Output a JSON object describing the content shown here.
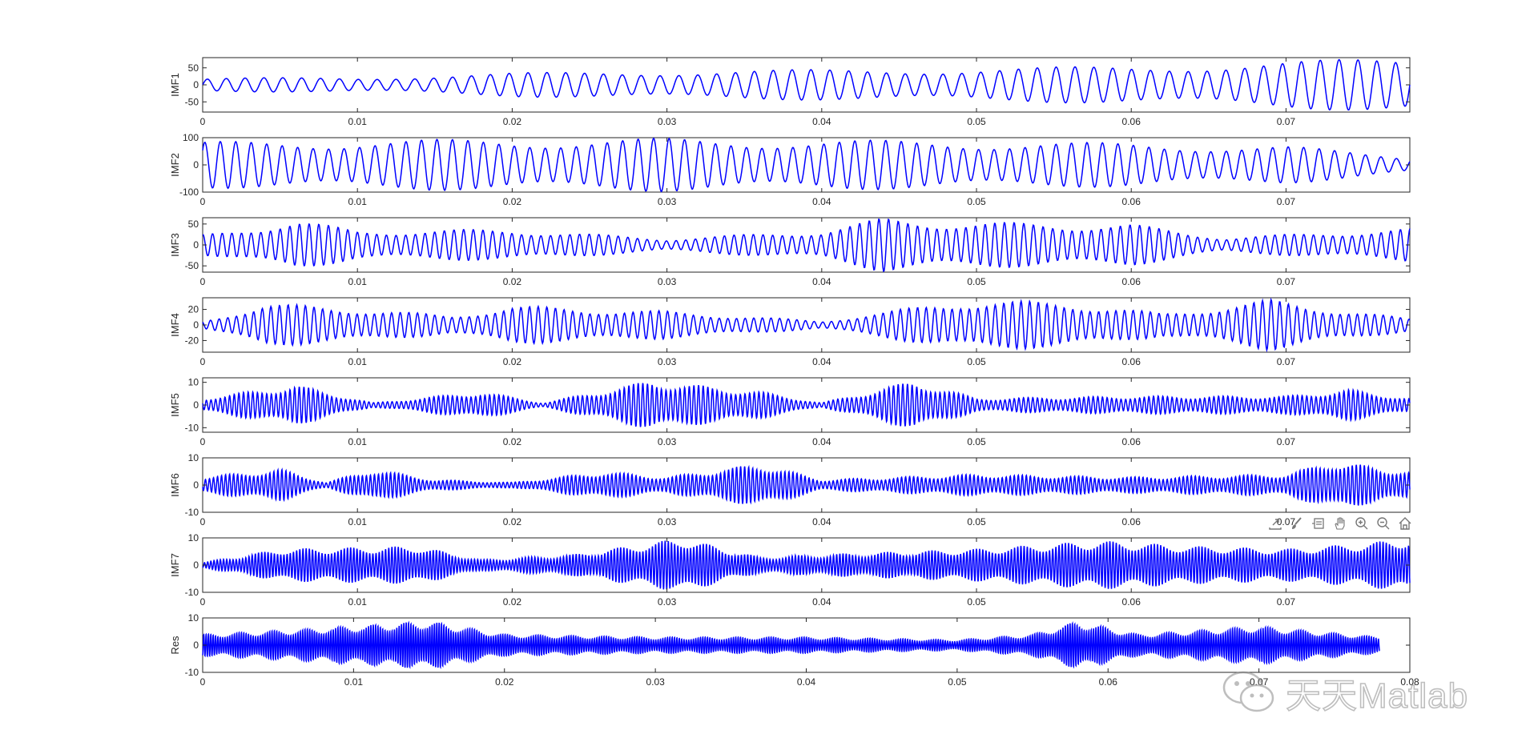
{
  "chart_data": [
    {
      "type": "line",
      "ylabel": "IMF1",
      "ylim": [
        -80,
        80
      ],
      "yticks": [
        -50,
        0,
        50
      ],
      "xlim": [
        0,
        0.078
      ],
      "x_tick_labels": [
        "0",
        "0.01",
        "0.02",
        "0.03",
        "0.04",
        "0.05",
        "0.06",
        "0.07"
      ],
      "series": [
        {
          "color": "#0000ff",
          "cycles": 64,
          "amp_envelope": [
            [
              0,
              20
            ],
            [
              0.01,
              22
            ],
            [
              0.02,
              35
            ],
            [
              0.03,
              42
            ],
            [
              0.04,
              45
            ],
            [
              0.05,
              50
            ],
            [
              0.06,
              55
            ],
            [
              0.07,
              70
            ],
            [
              0.078,
              80
            ]
          ]
        }
      ]
    },
    {
      "type": "line",
      "ylabel": "IMF2",
      "ylim": [
        -100,
        100
      ],
      "yticks": [
        -100,
        0,
        100
      ],
      "xlim": [
        0,
        0.078
      ],
      "x_tick_labels": [
        "0",
        "0.01",
        "0.02",
        "0.03",
        "0.04",
        "0.05",
        "0.06",
        "0.07"
      ],
      "series": [
        {
          "color": "#0000ff",
          "cycles": 78,
          "amp_envelope": [
            [
              0,
              85
            ],
            [
              0.01,
              92
            ],
            [
              0.02,
              95
            ],
            [
              0.03,
              98
            ],
            [
              0.04,
              92
            ],
            [
              0.05,
              88
            ],
            [
              0.06,
              80
            ],
            [
              0.07,
              70
            ],
            [
              0.078,
              30
            ]
          ]
        }
      ]
    },
    {
      "type": "line",
      "ylabel": "IMF3",
      "ylim": [
        -65,
        65
      ],
      "yticks": [
        -50,
        0,
        50
      ],
      "xlim": [
        0,
        0.078
      ],
      "x_tick_labels": [
        "0",
        "0.01",
        "0.02",
        "0.03",
        "0.04",
        "0.05",
        "0.06",
        "0.07"
      ],
      "series": [
        {
          "color": "#0000ff",
          "cycles": 125,
          "amp_envelope": [
            [
              0,
              25
            ],
            [
              0.006,
              60
            ],
            [
              0.01,
              35
            ],
            [
              0.02,
              38
            ],
            [
              0.03,
              15
            ],
            [
              0.04,
              35
            ],
            [
              0.044,
              65
            ],
            [
              0.05,
              55
            ],
            [
              0.06,
              50
            ],
            [
              0.066,
              18
            ],
            [
              0.078,
              40
            ]
          ]
        }
      ]
    },
    {
      "type": "line",
      "ylabel": "IMF4",
      "ylim": [
        -35,
        35
      ],
      "yticks": [
        -20,
        0,
        20
      ],
      "xlim": [
        0,
        0.078
      ],
      "x_tick_labels": [
        "0",
        "0.01",
        "0.02",
        "0.03",
        "0.04",
        "0.05",
        "0.06",
        "0.07"
      ],
      "series": [
        {
          "color": "#0000ff",
          "cycles": 140,
          "amp_envelope": [
            [
              0,
              5
            ],
            [
              0.004,
              28
            ],
            [
              0.01,
              22
            ],
            [
              0.016,
              12
            ],
            [
              0.02,
              25
            ],
            [
              0.03,
              18
            ],
            [
              0.04,
              5
            ],
            [
              0.049,
              32
            ],
            [
              0.056,
              30
            ],
            [
              0.062,
              15
            ],
            [
              0.069,
              33
            ],
            [
              0.078,
              8
            ]
          ]
        }
      ]
    },
    {
      "type": "line",
      "ylabel": "IMF5",
      "ylim": [
        -12,
        12
      ],
      "yticks": [
        -10,
        0,
        10
      ],
      "xlim": [
        0,
        0.078
      ],
      "x_tick_labels": [
        "0",
        "0.01",
        "0.02",
        "0.03",
        "0.04",
        "0.05",
        "0.06",
        "0.07"
      ],
      "series": [
        {
          "color": "#0000ff",
          "cycles": 260,
          "amp_envelope": [
            [
              0,
              3
            ],
            [
              0.006,
              9
            ],
            [
              0.011,
              1
            ],
            [
              0.018,
              6
            ],
            [
              0.022,
              1
            ],
            [
              0.029,
              11
            ],
            [
              0.036,
              6
            ],
            [
              0.04,
              1
            ],
            [
              0.046,
              11
            ],
            [
              0.05,
              3
            ],
            [
              0.06,
              4
            ],
            [
              0.07,
              4
            ],
            [
              0.074,
              7
            ],
            [
              0.078,
              3
            ]
          ]
        }
      ]
    },
    {
      "type": "line",
      "ylabel": "IMF6",
      "ylim": [
        -10,
        10
      ],
      "yticks": [
        -10,
        0,
        10
      ],
      "xlim": [
        0,
        0.078
      ],
      "x_tick_labels": [
        "0",
        "0.01",
        "0.02",
        "0.03",
        "0.04",
        "0.05",
        "0.06",
        "0.07"
      ],
      "series": [
        {
          "color": "#0000ff",
          "cycles": 300,
          "amp_envelope": [
            [
              0,
              3
            ],
            [
              0.005,
              6
            ],
            [
              0.008,
              1
            ],
            [
              0.011,
              6
            ],
            [
              0.015,
              2
            ],
            [
              0.02,
              1
            ],
            [
              0.026,
              5
            ],
            [
              0.03,
              3
            ],
            [
              0.036,
              8
            ],
            [
              0.04,
              2
            ],
            [
              0.05,
              4
            ],
            [
              0.06,
              3
            ],
            [
              0.07,
              4
            ],
            [
              0.073,
              9
            ],
            [
              0.078,
              5
            ]
          ]
        }
      ]
    },
    {
      "type": "line",
      "ylabel": "IMF7",
      "ylim": [
        -10,
        10
      ],
      "yticks": [
        -10,
        0,
        10
      ],
      "xlim": [
        0,
        0.078
      ],
      "x_tick_labels": [
        "0",
        "0.01",
        "0.02",
        "0.03",
        "0.04",
        "0.05",
        "0.06",
        "0.07"
      ],
      "series": [
        {
          "color": "#0000ff",
          "cycles": 380,
          "amp_envelope": [
            [
              0,
              1
            ],
            [
              0.005,
              6
            ],
            [
              0.014,
              7
            ],
            [
              0.018,
              2
            ],
            [
              0.024,
              4
            ],
            [
              0.031,
              10
            ],
            [
              0.036,
              3
            ],
            [
              0.04,
              4
            ],
            [
              0.05,
              6
            ],
            [
              0.058,
              9
            ],
            [
              0.064,
              7
            ],
            [
              0.07,
              6
            ],
            [
              0.075,
              8
            ],
            [
              0.078,
              10
            ]
          ]
        }
      ]
    },
    {
      "type": "line",
      "ylabel": "Res",
      "ylim": [
        -10,
        10
      ],
      "yticks": [
        -10,
        0,
        10
      ],
      "xlim": [
        0,
        0.08
      ],
      "x_tick_labels": [
        "0",
        "0.01",
        "0.02",
        "0.03",
        "0.04",
        "0.05",
        "0.06",
        "0.07",
        "0.08"
      ],
      "series": [
        {
          "color": "#0000ff",
          "cycles": 500,
          "x_end": 0.078,
          "amp_envelope": [
            [
              0,
              4
            ],
            [
              0.007,
              6
            ],
            [
              0.015,
              9
            ],
            [
              0.02,
              4
            ],
            [
              0.03,
              3
            ],
            [
              0.04,
              3
            ],
            [
              0.05,
              2
            ],
            [
              0.055,
              4
            ],
            [
              0.058,
              9
            ],
            [
              0.062,
              4
            ],
            [
              0.07,
              7
            ],
            [
              0.078,
              3
            ]
          ]
        }
      ]
    }
  ],
  "toolbar": {
    "icons": [
      "export-icon",
      "brush-icon",
      "datatips-icon",
      "pan-icon",
      "zoom-in-icon",
      "zoom-out-icon",
      "home-icon"
    ]
  },
  "watermark": {
    "text": "天天Matlab"
  }
}
